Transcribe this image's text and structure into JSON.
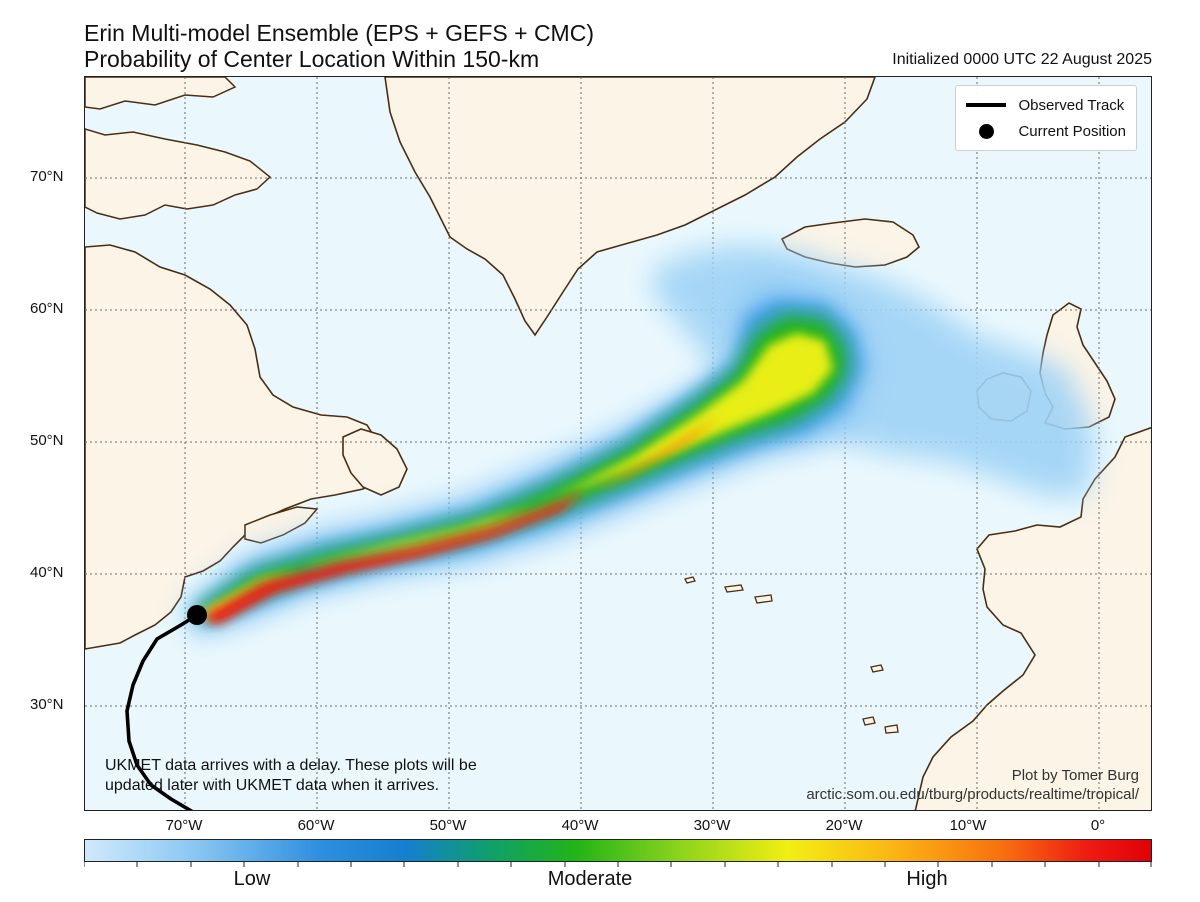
{
  "header": {
    "title_line1": "Erin Multi-model Ensemble (EPS + GEFS + CMC)",
    "title_line2": "Probability of Center Location Within 150-km",
    "initialized": "Initialized 0000 UTC 22 August 2025"
  },
  "legend": {
    "track_label": "Observed Track",
    "position_label": "Current Position"
  },
  "axes": {
    "lat_labels": [
      "70°N",
      "60°N",
      "50°N",
      "40°N",
      "30°N"
    ],
    "lon_labels": [
      "70°W",
      "60°W",
      "50°W",
      "40°W",
      "30°W",
      "20°W",
      "10°W",
      "0°"
    ]
  },
  "notes": {
    "ukmet_line1": "UKMET data arrives with a delay. These plots will be",
    "ukmet_line2": "updated later with UKMET data when it arrives.",
    "credit_line1": "Plot by Tomer Burg",
    "credit_line2": "arctic.som.ou.edu/tburg/products/realtime/tropical/"
  },
  "colorbar": {
    "low": "Low",
    "moderate": "Moderate",
    "high": "High"
  },
  "colors": {
    "ocean": "#eaf8fd",
    "land": "#fbf4e7",
    "coast": "#4a2d12",
    "track": "#000000"
  }
}
